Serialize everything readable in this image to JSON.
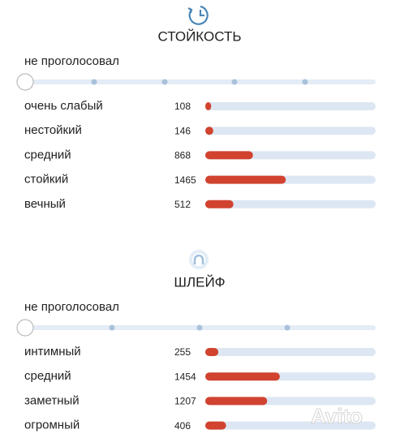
{
  "sections": [
    {
      "title": "СТОЙКОСТЬ",
      "unvoted_label": "не проголосовал",
      "rows": [
        {
          "label": "очень слабый",
          "count": 108
        },
        {
          "label": "нестойкий",
          "count": 146
        },
        {
          "label": "средний",
          "count": 868
        },
        {
          "label": "стойкий",
          "count": 1465
        },
        {
          "label": "вечный",
          "count": 512
        }
      ]
    },
    {
      "title": "ШЛЕЙФ",
      "unvoted_label": "не проголосовал",
      "rows": [
        {
          "label": "интимный",
          "count": 255
        },
        {
          "label": "средний",
          "count": 1454
        },
        {
          "label": "заметный",
          "count": 1207
        },
        {
          "label": "огромный",
          "count": 406
        }
      ]
    }
  ],
  "watermark": "Avito"
}
